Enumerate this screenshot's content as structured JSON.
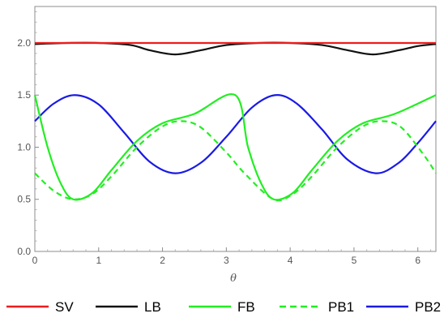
{
  "chart_data": {
    "type": "line",
    "title": "",
    "xlabel": "θ",
    "ylabel": "",
    "xlim": [
      0,
      6.283
    ],
    "ylim": [
      0,
      2.35
    ],
    "xticks": [
      "0",
      "1",
      "2",
      "3",
      "4",
      "5",
      "6"
    ],
    "yticks": [
      "0.0",
      "0.5",
      "1.0",
      "1.5",
      "2.0"
    ],
    "grid": false,
    "legend_position": "bottom",
    "series": [
      {
        "name": "SV",
        "color": "#ee1c1c",
        "dash": "solid",
        "x": [
          0,
          0.5,
          1,
          1.5,
          2,
          2.5,
          3,
          3.5,
          4,
          4.5,
          5,
          5.5,
          6,
          6.283
        ],
        "y": [
          2.0,
          2.0,
          2.0,
          2.0,
          2.0,
          2.0,
          2.0,
          2.0,
          2.0,
          2.0,
          2.0,
          2.0,
          2.0,
          2.0
        ]
      },
      {
        "name": "LB",
        "color": "#111111",
        "dash": "solid",
        "x": [
          0,
          0.5,
          1,
          1.5,
          1.8,
          2.2,
          2.6,
          3,
          3.5,
          4,
          4.5,
          4.9,
          5.3,
          5.7,
          6,
          6.283
        ],
        "y": [
          1.99,
          2.0,
          2.0,
          1.98,
          1.93,
          1.89,
          1.93,
          1.98,
          2.0,
          2.0,
          1.98,
          1.93,
          1.89,
          1.93,
          1.97,
          1.99
        ]
      },
      {
        "name": "FB",
        "color": "#22ee22",
        "dash": "solid",
        "x": [
          0,
          0.2,
          0.4,
          0.6,
          0.9,
          1.2,
          1.6,
          2.0,
          2.5,
          3.14,
          3.34,
          3.54,
          3.74,
          4.04,
          4.34,
          4.74,
          5.14,
          5.64,
          6.283
        ],
        "y": [
          1.5,
          1.0,
          0.66,
          0.5,
          0.56,
          0.78,
          1.06,
          1.23,
          1.32,
          1.5,
          1.0,
          0.66,
          0.5,
          0.56,
          0.78,
          1.06,
          1.23,
          1.32,
          1.5
        ]
      },
      {
        "name": "PB1",
        "color": "#22ee22",
        "dash": "dashed",
        "x": [
          0,
          0.3,
          0.6,
          0.9,
          1.2,
          1.6,
          2.0,
          2.3,
          2.6,
          3.0,
          3.3,
          3.74,
          4.04,
          4.34,
          4.74,
          5.14,
          5.44,
          5.74,
          6.1,
          6.283
        ],
        "y": [
          0.75,
          0.58,
          0.5,
          0.55,
          0.72,
          1.0,
          1.2,
          1.25,
          1.19,
          0.95,
          0.74,
          0.5,
          0.55,
          0.72,
          1.0,
          1.2,
          1.25,
          1.19,
          0.92,
          0.75
        ]
      },
      {
        "name": "PB2",
        "color": "#1a1ae6",
        "dash": "solid",
        "x": [
          0,
          0.3,
          0.63,
          1.0,
          1.4,
          1.8,
          2.2,
          2.6,
          3.0,
          3.4,
          3.77,
          4.1,
          4.5,
          4.9,
          5.34,
          5.7,
          6.0,
          6.283
        ],
        "y": [
          1.25,
          1.42,
          1.5,
          1.41,
          1.14,
          0.86,
          0.75,
          0.85,
          1.1,
          1.38,
          1.5,
          1.42,
          1.17,
          0.88,
          0.75,
          0.85,
          1.04,
          1.25
        ]
      }
    ]
  }
}
